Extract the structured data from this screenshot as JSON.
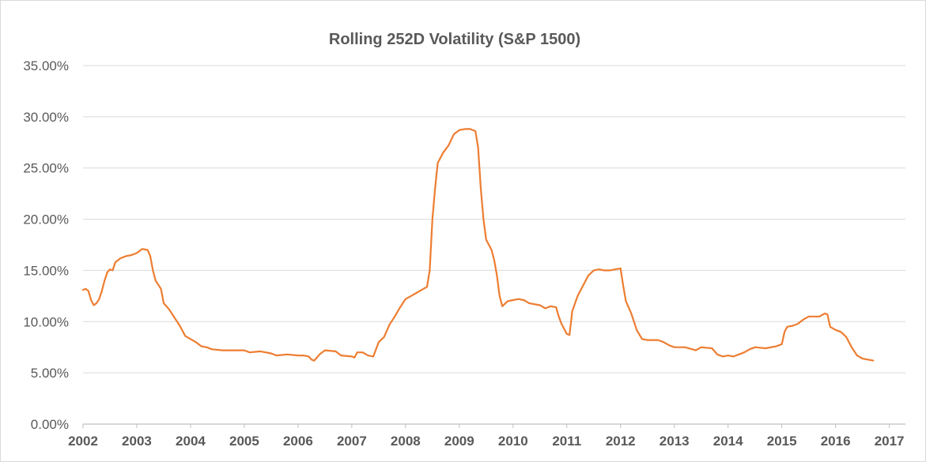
{
  "chart_data": {
    "type": "line",
    "title": "Rolling 252D Volatility (S&P 1500)",
    "xlabel": "",
    "ylabel": "",
    "xlim": [
      2002,
      2017.3
    ],
    "ylim": [
      0,
      0.35
    ],
    "grid": true,
    "legend": "none",
    "x_ticks": [
      "2002",
      "2003",
      "2004",
      "2005",
      "2006",
      "2007",
      "2008",
      "2009",
      "2010",
      "2011",
      "2012",
      "2013",
      "2014",
      "2015",
      "2016",
      "2017"
    ],
    "y_ticks": [
      "0.00%",
      "5.00%",
      "10.00%",
      "15.00%",
      "20.00%",
      "25.00%",
      "30.00%",
      "35.00%"
    ],
    "series": [
      {
        "color": "#ED7D31",
        "points": [
          [
            2002.0,
            0.131
          ],
          [
            2002.05,
            0.132
          ],
          [
            2002.1,
            0.13
          ],
          [
            2002.15,
            0.121
          ],
          [
            2002.2,
            0.116
          ],
          [
            2002.25,
            0.118
          ],
          [
            2002.3,
            0.122
          ],
          [
            2002.35,
            0.13
          ],
          [
            2002.4,
            0.14
          ],
          [
            2002.45,
            0.148
          ],
          [
            2002.5,
            0.151
          ],
          [
            2002.55,
            0.15
          ],
          [
            2002.6,
            0.158
          ],
          [
            2002.7,
            0.162
          ],
          [
            2002.8,
            0.164
          ],
          [
            2002.9,
            0.165
          ],
          [
            2003.0,
            0.167
          ],
          [
            2003.1,
            0.171
          ],
          [
            2003.2,
            0.17
          ],
          [
            2003.25,
            0.164
          ],
          [
            2003.3,
            0.15
          ],
          [
            2003.35,
            0.14
          ],
          [
            2003.45,
            0.132
          ],
          [
            2003.5,
            0.118
          ],
          [
            2003.6,
            0.112
          ],
          [
            2003.7,
            0.104
          ],
          [
            2003.8,
            0.096
          ],
          [
            2003.9,
            0.086
          ],
          [
            2004.0,
            0.083
          ],
          [
            2004.1,
            0.08
          ],
          [
            2004.2,
            0.076
          ],
          [
            2004.3,
            0.075
          ],
          [
            2004.4,
            0.073
          ],
          [
            2004.6,
            0.072
          ],
          [
            2004.8,
            0.072
          ],
          [
            2005.0,
            0.072
          ],
          [
            2005.1,
            0.07
          ],
          [
            2005.3,
            0.071
          ],
          [
            2005.5,
            0.069
          ],
          [
            2005.6,
            0.067
          ],
          [
            2005.8,
            0.068
          ],
          [
            2006.0,
            0.067
          ],
          [
            2006.1,
            0.067
          ],
          [
            2006.2,
            0.066
          ],
          [
            2006.25,
            0.063
          ],
          [
            2006.3,
            0.062
          ],
          [
            2006.4,
            0.068
          ],
          [
            2006.5,
            0.072
          ],
          [
            2006.7,
            0.071
          ],
          [
            2006.8,
            0.067
          ],
          [
            2007.0,
            0.066
          ],
          [
            2007.05,
            0.065
          ],
          [
            2007.1,
            0.07
          ],
          [
            2007.2,
            0.07
          ],
          [
            2007.3,
            0.067
          ],
          [
            2007.4,
            0.066
          ],
          [
            2007.5,
            0.08
          ],
          [
            2007.6,
            0.085
          ],
          [
            2007.7,
            0.097
          ],
          [
            2007.8,
            0.105
          ],
          [
            2007.9,
            0.114
          ],
          [
            2008.0,
            0.122
          ],
          [
            2008.1,
            0.125
          ],
          [
            2008.2,
            0.128
          ],
          [
            2008.3,
            0.131
          ],
          [
            2008.4,
            0.134
          ],
          [
            2008.45,
            0.15
          ],
          [
            2008.5,
            0.2
          ],
          [
            2008.55,
            0.23
          ],
          [
            2008.6,
            0.255
          ],
          [
            2008.65,
            0.26
          ],
          [
            2008.7,
            0.265
          ],
          [
            2008.8,
            0.272
          ],
          [
            2008.9,
            0.283
          ],
          [
            2009.0,
            0.287
          ],
          [
            2009.1,
            0.288
          ],
          [
            2009.2,
            0.288
          ],
          [
            2009.3,
            0.286
          ],
          [
            2009.35,
            0.27
          ],
          [
            2009.4,
            0.23
          ],
          [
            2009.45,
            0.2
          ],
          [
            2009.5,
            0.18
          ],
          [
            2009.6,
            0.17
          ],
          [
            2009.65,
            0.16
          ],
          [
            2009.7,
            0.145
          ],
          [
            2009.75,
            0.125
          ],
          [
            2009.8,
            0.115
          ],
          [
            2009.9,
            0.12
          ],
          [
            2010.0,
            0.121
          ],
          [
            2010.1,
            0.122
          ],
          [
            2010.2,
            0.121
          ],
          [
            2010.3,
            0.118
          ],
          [
            2010.5,
            0.116
          ],
          [
            2010.6,
            0.113
          ],
          [
            2010.7,
            0.115
          ],
          [
            2010.8,
            0.114
          ],
          [
            2010.85,
            0.105
          ],
          [
            2010.9,
            0.098
          ],
          [
            2011.0,
            0.088
          ],
          [
            2011.05,
            0.087
          ],
          [
            2011.1,
            0.11
          ],
          [
            2011.2,
            0.125
          ],
          [
            2011.3,
            0.135
          ],
          [
            2011.4,
            0.145
          ],
          [
            2011.5,
            0.15
          ],
          [
            2011.6,
            0.151
          ],
          [
            2011.7,
            0.15
          ],
          [
            2011.8,
            0.15
          ],
          [
            2011.9,
            0.151
          ],
          [
            2012.0,
            0.152
          ],
          [
            2012.05,
            0.135
          ],
          [
            2012.1,
            0.12
          ],
          [
            2012.2,
            0.108
          ],
          [
            2012.3,
            0.092
          ],
          [
            2012.4,
            0.083
          ],
          [
            2012.5,
            0.082
          ],
          [
            2012.7,
            0.082
          ],
          [
            2012.8,
            0.08
          ],
          [
            2012.9,
            0.077
          ],
          [
            2013.0,
            0.075
          ],
          [
            2013.2,
            0.075
          ],
          [
            2013.4,
            0.072
          ],
          [
            2013.5,
            0.075
          ],
          [
            2013.7,
            0.074
          ],
          [
            2013.8,
            0.068
          ],
          [
            2013.9,
            0.066
          ],
          [
            2014.0,
            0.067
          ],
          [
            2014.1,
            0.066
          ],
          [
            2014.2,
            0.068
          ],
          [
            2014.3,
            0.07
          ],
          [
            2014.4,
            0.073
          ],
          [
            2014.5,
            0.075
          ],
          [
            2014.7,
            0.074
          ],
          [
            2014.9,
            0.076
          ],
          [
            2015.0,
            0.078
          ],
          [
            2015.05,
            0.09
          ],
          [
            2015.1,
            0.095
          ],
          [
            2015.2,
            0.096
          ],
          [
            2015.3,
            0.098
          ],
          [
            2015.4,
            0.102
          ],
          [
            2015.5,
            0.105
          ],
          [
            2015.6,
            0.105
          ],
          [
            2015.7,
            0.105
          ],
          [
            2015.8,
            0.108
          ],
          [
            2015.85,
            0.107
          ],
          [
            2015.9,
            0.095
          ],
          [
            2016.0,
            0.092
          ],
          [
            2016.1,
            0.09
          ],
          [
            2016.2,
            0.085
          ],
          [
            2016.3,
            0.075
          ],
          [
            2016.4,
            0.067
          ],
          [
            2016.5,
            0.064
          ],
          [
            2016.6,
            0.063
          ],
          [
            2016.7,
            0.062
          ]
        ]
      }
    ]
  }
}
